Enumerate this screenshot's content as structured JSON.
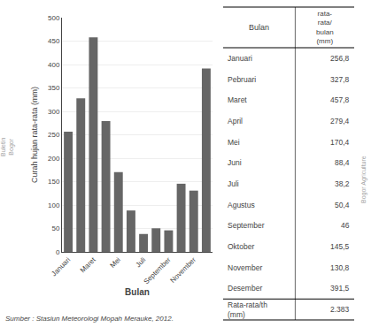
{
  "chart_data": {
    "type": "bar",
    "categories": [
      "Januari",
      null,
      "Maret",
      null,
      "Mei",
      null,
      "Juli",
      null,
      "September",
      null,
      "November",
      null
    ],
    "values": [
      256.8,
      327.8,
      457.8,
      279.4,
      170.4,
      88.4,
      38.2,
      50.4,
      46.0,
      145.5,
      130.8,
      391.5
    ],
    "color": "#666666",
    "xlabel": "Bulan",
    "ylabel": "Curah hujan rata-rata (mm)",
    "ylim": [
      0,
      500
    ],
    "yticks": [
      0,
      50,
      100,
      150,
      200,
      250,
      300,
      350,
      400,
      450,
      500
    ],
    "grid": true,
    "table": {
      "columns": [
        "Bulan",
        "rata-\nrata/\nbulan\n(mm)"
      ],
      "rows": [
        [
          "Januari",
          "256,8"
        ],
        [
          "Pebruari",
          "327,8"
        ],
        [
          "Maret",
          "457,8"
        ],
        [
          "April",
          "279,4"
        ],
        [
          "Mei",
          "170,4"
        ],
        [
          "Juni",
          "88,4"
        ],
        [
          "Juli",
          "38,2"
        ],
        [
          "Agustus",
          "50,4"
        ],
        [
          "September",
          "46"
        ],
        [
          "Oktober",
          "145,5"
        ],
        [
          "November",
          "130,8"
        ],
        [
          "Desember",
          "391,5"
        ],
        [
          "Rata-rata/th\n(mm)",
          "2.383"
        ]
      ]
    },
    "source": "Sumber : Stasiun Meteorologi Mopah Merauke, 2012.",
    "watermarks": [
      "Buletin\nBogor",
      "Bogor Agriculture"
    ]
  }
}
